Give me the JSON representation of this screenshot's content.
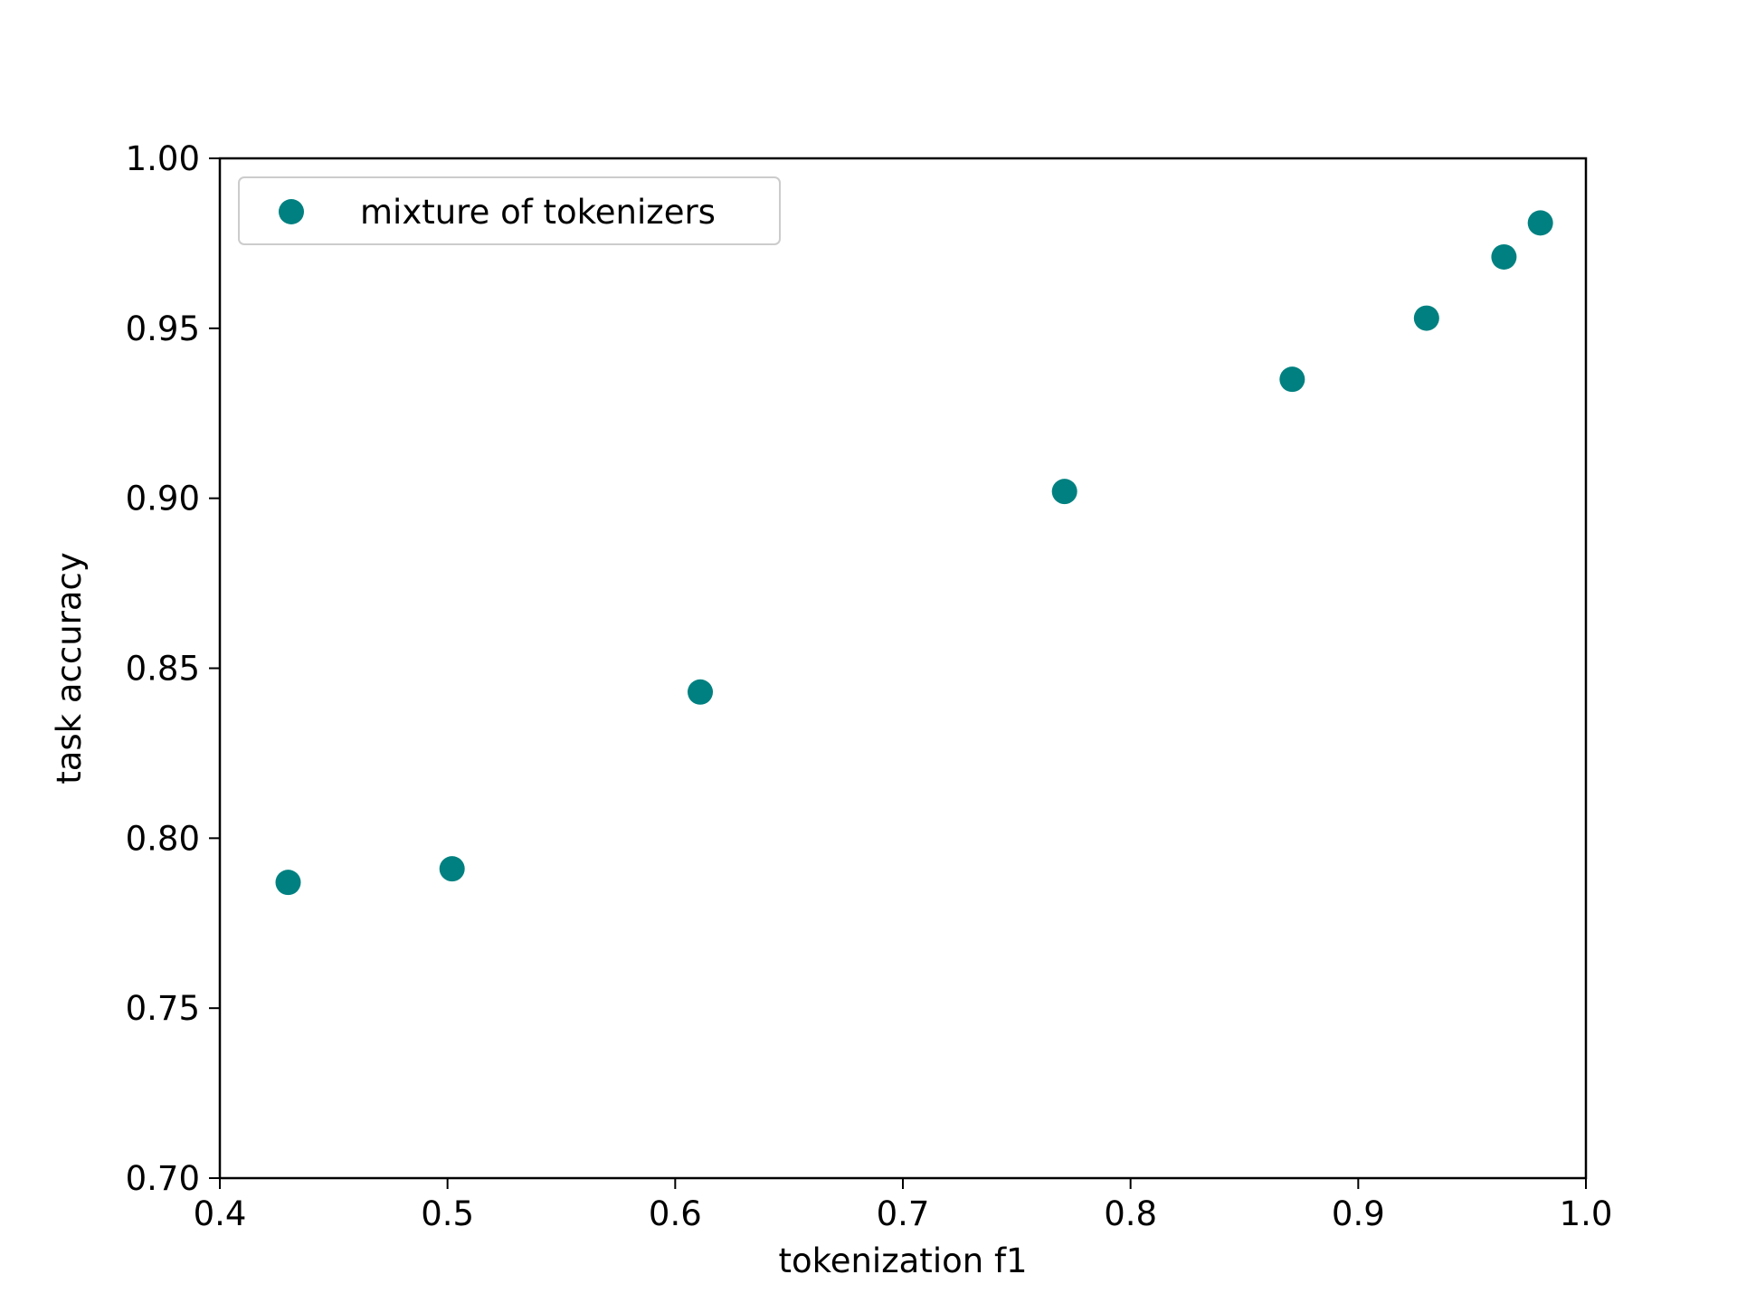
{
  "chart_data": {
    "type": "scatter",
    "title": "",
    "xlabel": "tokenization f1",
    "ylabel": "task accuracy",
    "xlim": [
      0.4,
      1.0
    ],
    "ylim": [
      0.7,
      1.0
    ],
    "x_ticks": [
      "0.4",
      "0.5",
      "0.6",
      "0.7",
      "0.8",
      "0.9",
      "1.0"
    ],
    "y_ticks": [
      "0.70",
      "0.75",
      "0.80",
      "0.85",
      "0.90",
      "0.95",
      "1.00"
    ],
    "grid": false,
    "legend_position": "top-left",
    "series": [
      {
        "name": "mixture of tokenizers",
        "color": "#008080",
        "x": [
          0.43,
          0.502,
          0.611,
          0.771,
          0.871,
          0.93,
          0.964,
          0.98
        ],
        "y": [
          0.787,
          0.791,
          0.843,
          0.902,
          0.935,
          0.953,
          0.971,
          0.981
        ]
      }
    ]
  }
}
